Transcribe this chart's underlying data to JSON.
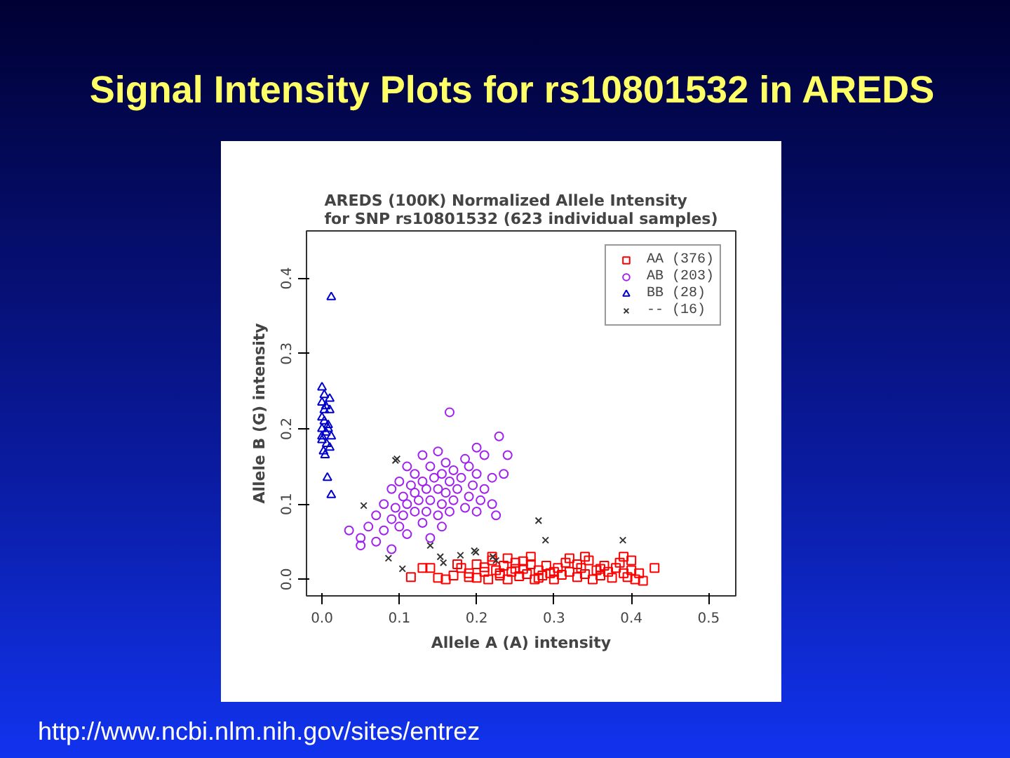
{
  "chart_data": {
    "type": "scatter",
    "title": "Signal Intensity Plots for rs10801532 in AREDS",
    "subtitle": "AREDS (100K) Normalized Allele Intensity\nfor SNP rs10801532 (623 individual samples)",
    "xlabel": "Allele A (A) intensity",
    "ylabel": "Allele B (G) intensity",
    "annotations": [
      "http://www.ncbi.nlm.nih.gov/sites/entrez"
    ],
    "xlim": [
      -0.02,
      0.535
    ],
    "ylim": [
      -0.022,
      0.463
    ],
    "xticks": [
      {
        "value": 0,
        "label": "0.0"
      },
      0.1,
      0.2,
      0.3,
      0.4,
      0.5
    ],
    "yticks": [
      {
        "value": 0,
        "label": "0.0"
      },
      0.1,
      0.2,
      0.3,
      0.4
    ],
    "legend": "top right",
    "series": [
      {
        "name": "AA (376)",
        "color": "#ff0000",
        "marker": "square",
        "x": [
          0.115,
          0.13,
          0.14,
          0.16,
          0.17,
          0.18,
          0.19,
          0.2,
          0.2,
          0.21,
          0.215,
          0.22,
          0.225,
          0.23,
          0.235,
          0.24,
          0.245,
          0.25,
          0.255,
          0.26,
          0.265,
          0.27,
          0.275,
          0.28,
          0.285,
          0.29,
          0.295,
          0.3,
          0.305,
          0.31,
          0.315,
          0.32,
          0.33,
          0.335,
          0.34,
          0.345,
          0.35,
          0.355,
          0.36,
          0.365,
          0.37,
          0.375,
          0.38,
          0.385,
          0.39,
          0.39,
          0.395,
          0.4,
          0.405,
          0.41,
          0.415,
          0.43,
          0.4,
          0.34,
          0.32,
          0.27,
          0.24,
          0.22,
          0.25,
          0.23,
          0.21,
          0.28,
          0.3,
          0.19,
          0.175,
          0.15,
          0.26,
          0.33,
          0.36
        ],
        "values": [
          0.003,
          0.015,
          0.015,
          0.0,
          0.005,
          0.015,
          0.008,
          0.002,
          0.02,
          0.01,
          0.0,
          0.025,
          0.012,
          0.005,
          0.018,
          0.0,
          0.01,
          0.022,
          0.004,
          0.014,
          0.007,
          0.02,
          0.0,
          0.012,
          0.005,
          0.018,
          0.008,
          0.0,
          0.015,
          0.006,
          0.022,
          0.01,
          0.003,
          0.015,
          0.007,
          0.025,
          0.0,
          0.012,
          0.005,
          0.018,
          0.01,
          0.002,
          0.015,
          0.022,
          0.03,
          0.008,
          0.003,
          0.012,
          0.0,
          0.008,
          -0.002,
          0.015,
          0.025,
          0.03,
          0.028,
          0.03,
          0.028,
          0.03,
          0.014,
          0.008,
          0.016,
          0.002,
          0.01,
          0.003,
          0.02,
          0.002,
          0.024,
          0.02,
          0.014
        ]
      },
      {
        "name": "AB (203)",
        "color": "#a020f0",
        "marker": "circle",
        "x": [
          0.165,
          0.229,
          0.13,
          0.15,
          0.2,
          0.21,
          0.185,
          0.11,
          0.12,
          0.14,
          0.16,
          0.17,
          0.19,
          0.2,
          0.1,
          0.115,
          0.13,
          0.145,
          0.155,
          0.165,
          0.18,
          0.195,
          0.21,
          0.09,
          0.105,
          0.12,
          0.135,
          0.15,
          0.16,
          0.175,
          0.19,
          0.205,
          0.22,
          0.08,
          0.095,
          0.11,
          0.125,
          0.14,
          0.155,
          0.17,
          0.185,
          0.2,
          0.07,
          0.09,
          0.105,
          0.12,
          0.135,
          0.15,
          0.165,
          0.06,
          0.08,
          0.1,
          0.13,
          0.155,
          0.035,
          0.05,
          0.07,
          0.11,
          0.14,
          0.05,
          0.09,
          0.24,
          0.235,
          0.22,
          0.225
        ],
        "values": [
          0.222,
          0.19,
          0.165,
          0.17,
          0.175,
          0.165,
          0.16,
          0.15,
          0.14,
          0.15,
          0.155,
          0.145,
          0.15,
          0.14,
          0.13,
          0.125,
          0.13,
          0.135,
          0.14,
          0.13,
          0.135,
          0.125,
          0.12,
          0.12,
          0.11,
          0.115,
          0.12,
          0.12,
          0.115,
          0.12,
          0.11,
          0.105,
          0.1,
          0.1,
          0.095,
          0.1,
          0.105,
          0.105,
          0.1,
          0.105,
          0.095,
          0.09,
          0.085,
          0.08,
          0.085,
          0.09,
          0.09,
          0.085,
          0.09,
          0.07,
          0.065,
          0.07,
          0.075,
          0.07,
          0.065,
          0.055,
          0.05,
          0.06,
          0.055,
          0.045,
          0.04,
          0.165,
          0.14,
          0.135,
          0.085
        ]
      },
      {
        "name": "BB (28)",
        "color": "#0000cd",
        "marker": "triangle",
        "x": [
          0.012,
          0.0,
          0.003,
          0.01,
          0.0,
          0.005,
          0.01,
          0.0,
          0.003,
          0.008,
          0.0,
          0.005,
          0.012,
          0.0,
          0.006,
          0.01,
          0.002,
          0.004,
          0.007,
          0.012,
          0.0,
          0.008,
          0.003
        ],
        "values": [
          0.375,
          0.255,
          0.245,
          0.24,
          0.235,
          0.23,
          0.225,
          0.215,
          0.21,
          0.205,
          0.2,
          0.195,
          0.19,
          0.185,
          0.18,
          0.175,
          0.17,
          0.165,
          0.135,
          0.112,
          0.19,
          0.2,
          0.225
        ]
      },
      {
        "name": "-- (16)",
        "color": "#333333",
        "marker": "cross",
        "x": [
          0.054,
          0.095,
          0.097,
          0.14,
          0.153,
          0.157,
          0.086,
          0.104,
          0.179,
          0.199,
          0.197,
          0.221,
          0.225,
          0.28,
          0.289,
          0.389
        ],
        "values": [
          0.098,
          0.158,
          0.16,
          0.045,
          0.03,
          0.022,
          0.028,
          0.014,
          0.032,
          0.036,
          0.038,
          0.03,
          0.025,
          0.078,
          0.052,
          0.052
        ]
      }
    ]
  }
}
